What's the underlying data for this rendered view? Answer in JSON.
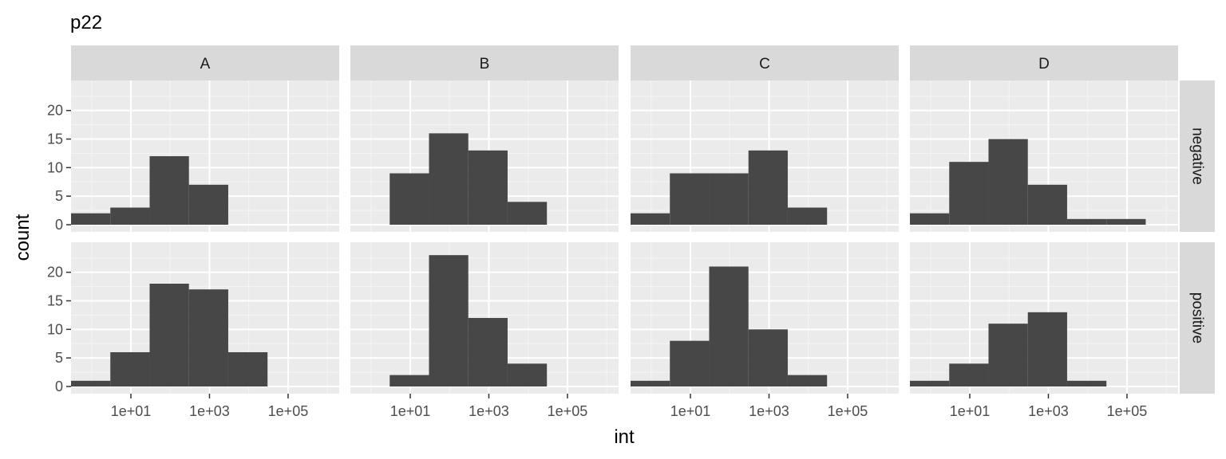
{
  "chart_data": {
    "type": "histogram",
    "title": "p22",
    "xlabel": "int",
    "ylabel": "count",
    "x_scale": "log10",
    "x_range": [
      0.3,
      2000000
    ],
    "x_ticks": [
      10,
      1000,
      100000
    ],
    "x_tick_labels": [
      "1e+01",
      "1e+03",
      "1e+05"
    ],
    "ylim": [
      0,
      24
    ],
    "y_ticks": [
      0,
      5,
      10,
      15,
      20
    ],
    "y_tick_labels": [
      "0",
      "5",
      "10",
      "15",
      "20"
    ],
    "grid": true,
    "facet_columns": [
      "A",
      "B",
      "C",
      "D"
    ],
    "facet_rows": [
      "negative",
      "positive"
    ],
    "bin_edges": [
      0.3,
      3,
      30,
      300,
      3000,
      30000,
      300000
    ],
    "colors": {
      "bar": "#474747",
      "panel_bg": "#ebebeb",
      "strip_bg": "#d9d9d9",
      "grid_major": "#ffffff",
      "grid_minor": "#f5f5f5"
    },
    "panels": [
      {
        "column": "A",
        "row": "negative",
        "counts": [
          2,
          3,
          12,
          7,
          0,
          0
        ]
      },
      {
        "column": "B",
        "row": "negative",
        "counts": [
          0,
          9,
          16,
          13,
          4,
          0
        ]
      },
      {
        "column": "C",
        "row": "negative",
        "counts": [
          2,
          9,
          9,
          13,
          3,
          0
        ]
      },
      {
        "column": "D",
        "row": "negative",
        "counts": [
          2,
          11,
          15,
          7,
          1,
          1
        ]
      },
      {
        "column": "A",
        "row": "positive",
        "counts": [
          1,
          6,
          18,
          17,
          6,
          0
        ]
      },
      {
        "column": "B",
        "row": "positive",
        "counts": [
          0,
          2,
          23,
          12,
          4,
          0
        ]
      },
      {
        "column": "C",
        "row": "positive",
        "counts": [
          1,
          8,
          21,
          10,
          2,
          0
        ]
      },
      {
        "column": "D",
        "row": "positive",
        "counts": [
          1,
          4,
          11,
          13,
          1,
          0
        ]
      }
    ]
  }
}
